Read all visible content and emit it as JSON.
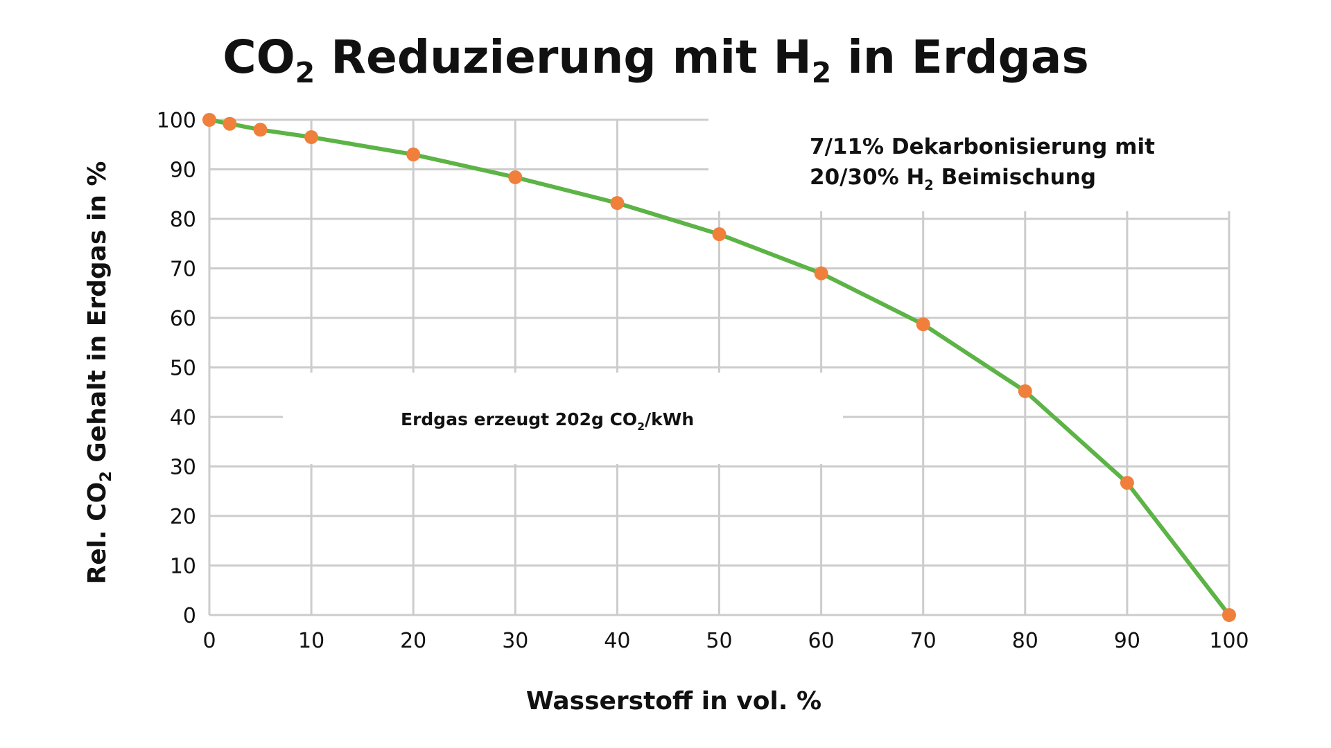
{
  "chart_data": {
    "type": "line",
    "title": {
      "part1": "CO",
      "sub1": "2",
      "part2": " Reduzierung mit H",
      "sub2": "2",
      "part3": " in Erdgas"
    },
    "xlabel": "Wasserstoff in vol. %",
    "ylabel": {
      "part1": "Rel. CO",
      "sub": "2",
      "part2": " Gehalt in Erdgas in %"
    },
    "xlim": [
      0,
      100
    ],
    "ylim": [
      0,
      100
    ],
    "x_ticks": [
      0,
      10,
      20,
      30,
      40,
      50,
      60,
      70,
      80,
      90,
      100
    ],
    "y_ticks": [
      0,
      10,
      20,
      30,
      40,
      50,
      60,
      70,
      80,
      90,
      100
    ],
    "grid": true,
    "x": [
      0,
      2,
      5,
      10,
      20,
      30,
      40,
      50,
      60,
      70,
      80,
      90,
      100
    ],
    "series": [
      {
        "values": [
          100,
          99.2,
          98,
          96.5,
          93,
          88.4,
          83.2,
          76.9,
          69,
          58.7,
          45.2,
          26.7,
          0
        ]
      }
    ],
    "colors": {
      "line": "#5cb346",
      "marker": "#f07f3c",
      "grid": "#cccccc"
    },
    "annotations": {
      "decarb": {
        "line1": "7/11% Dekarbonisierung mit",
        "line2_part1": "20/30% H",
        "line2_sub": "2",
        "line2_part2": " Beimischung"
      },
      "erdgas": {
        "part1": "Erdgas erzeugt 202g CO",
        "sub": "2",
        "part2": "/kWh"
      }
    }
  }
}
